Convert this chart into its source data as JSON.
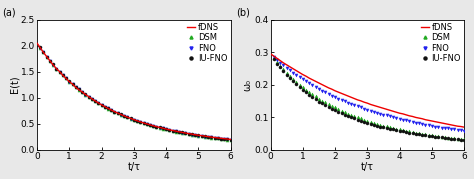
{
  "panel_a": {
    "label": "(a)",
    "ylabel": "E(t)",
    "xlabel": "t/τ",
    "xlim": [
      0,
      6
    ],
    "ylim": [
      0,
      2.5
    ],
    "yticks": [
      0.0,
      0.5,
      1.0,
      1.5,
      2.0,
      2.5
    ],
    "xticks": [
      0,
      1,
      2,
      3,
      4,
      5,
      6
    ],
    "fdns_x": [
      0.0,
      0.1,
      0.2,
      0.3,
      0.4,
      0.5,
      0.6,
      0.7,
      0.8,
      0.9,
      1.0,
      1.1,
      1.2,
      1.3,
      1.4,
      1.5,
      1.6,
      1.7,
      1.8,
      1.9,
      2.0,
      2.1,
      2.2,
      2.3,
      2.4,
      2.5,
      2.6,
      2.7,
      2.8,
      2.9,
      3.0,
      3.1,
      3.2,
      3.3,
      3.4,
      3.5,
      3.6,
      3.7,
      3.8,
      3.9,
      4.0,
      4.1,
      4.2,
      4.3,
      4.4,
      4.5,
      4.6,
      4.7,
      4.8,
      4.9,
      5.0,
      5.1,
      5.2,
      5.3,
      5.4,
      5.5,
      5.6,
      5.7,
      5.8,
      5.9,
      6.0
    ],
    "fdns_y": [
      2.05,
      1.96,
      1.87,
      1.79,
      1.71,
      1.63,
      1.56,
      1.5,
      1.43,
      1.37,
      1.31,
      1.26,
      1.2,
      1.15,
      1.11,
      1.06,
      1.02,
      0.977,
      0.937,
      0.898,
      0.862,
      0.827,
      0.794,
      0.762,
      0.731,
      0.703,
      0.675,
      0.649,
      0.624,
      0.6,
      0.577,
      0.555,
      0.534,
      0.514,
      0.495,
      0.477,
      0.459,
      0.442,
      0.426,
      0.411,
      0.396,
      0.382,
      0.368,
      0.355,
      0.343,
      0.331,
      0.319,
      0.308,
      0.298,
      0.287,
      0.277,
      0.268,
      0.259,
      0.25,
      0.241,
      0.233,
      0.225,
      0.218,
      0.21,
      0.203,
      0.196
    ],
    "dsm_x": [
      0.1,
      0.2,
      0.3,
      0.4,
      0.5,
      0.6,
      0.7,
      0.8,
      0.9,
      1.0,
      1.1,
      1.2,
      1.3,
      1.4,
      1.5,
      1.6,
      1.7,
      1.8,
      1.9,
      2.0,
      2.1,
      2.2,
      2.3,
      2.4,
      2.5,
      2.6,
      2.7,
      2.8,
      2.9,
      3.0,
      3.1,
      3.2,
      3.3,
      3.4,
      3.5,
      3.6,
      3.7,
      3.8,
      3.9,
      4.0,
      4.1,
      4.2,
      4.3,
      4.4,
      4.5,
      4.6,
      4.7,
      4.8,
      4.9,
      5.0,
      5.1,
      5.2,
      5.3,
      5.4,
      5.5,
      5.6,
      5.7,
      5.8,
      5.9,
      6.0
    ],
    "dsm_y": [
      1.96,
      1.87,
      1.79,
      1.71,
      1.63,
      1.56,
      1.49,
      1.43,
      1.37,
      1.31,
      1.26,
      1.2,
      1.15,
      1.1,
      1.06,
      1.01,
      0.971,
      0.931,
      0.893,
      0.857,
      0.822,
      0.789,
      0.757,
      0.727,
      0.698,
      0.67,
      0.644,
      0.619,
      0.594,
      0.571,
      0.549,
      0.528,
      0.508,
      0.489,
      0.47,
      0.452,
      0.435,
      0.419,
      0.403,
      0.388,
      0.373,
      0.36,
      0.346,
      0.333,
      0.321,
      0.31,
      0.298,
      0.288,
      0.277,
      0.267,
      0.258,
      0.249,
      0.24,
      0.231,
      0.223,
      0.215,
      0.208,
      0.2,
      0.193,
      0.187
    ],
    "fno_x": [
      0.1,
      0.2,
      0.3,
      0.4,
      0.5,
      0.6,
      0.7,
      0.8,
      0.9,
      1.0,
      1.1,
      1.2,
      1.3,
      1.4,
      1.5,
      1.6,
      1.7,
      1.8,
      1.9,
      2.0,
      2.1,
      2.2,
      2.3,
      2.4,
      2.5,
      2.6,
      2.7,
      2.8,
      2.9,
      3.0,
      3.1,
      3.2,
      3.3,
      3.4,
      3.5,
      3.6,
      3.7,
      3.8,
      3.9,
      4.0,
      4.1,
      4.2,
      4.3,
      4.4,
      4.5,
      4.6,
      4.7,
      4.8,
      4.9,
      5.0,
      5.1,
      5.2,
      5.3,
      5.4,
      5.5,
      5.6,
      5.7,
      5.8,
      5.9,
      6.0
    ],
    "fno_y": [
      1.96,
      1.87,
      1.79,
      1.71,
      1.63,
      1.56,
      1.49,
      1.43,
      1.37,
      1.31,
      1.26,
      1.21,
      1.16,
      1.11,
      1.06,
      1.02,
      0.975,
      0.935,
      0.896,
      0.86,
      0.825,
      0.792,
      0.76,
      0.73,
      0.701,
      0.673,
      0.647,
      0.622,
      0.598,
      0.575,
      0.553,
      0.532,
      0.512,
      0.493,
      0.474,
      0.456,
      0.439,
      0.423,
      0.407,
      0.392,
      0.377,
      0.363,
      0.35,
      0.337,
      0.325,
      0.313,
      0.301,
      0.29,
      0.28,
      0.27,
      0.26,
      0.251,
      0.242,
      0.233,
      0.225,
      0.217,
      0.209,
      0.202,
      0.195,
      0.188
    ],
    "iufno_x": [
      0.1,
      0.2,
      0.3,
      0.4,
      0.5,
      0.6,
      0.7,
      0.8,
      0.9,
      1.0,
      1.1,
      1.2,
      1.3,
      1.4,
      1.5,
      1.6,
      1.7,
      1.8,
      1.9,
      2.0,
      2.1,
      2.2,
      2.3,
      2.4,
      2.5,
      2.6,
      2.7,
      2.8,
      2.9,
      3.0,
      3.1,
      3.2,
      3.3,
      3.4,
      3.5,
      3.6,
      3.7,
      3.8,
      3.9,
      4.0,
      4.1,
      4.2,
      4.3,
      4.4,
      4.5,
      4.6,
      4.7,
      4.8,
      4.9,
      5.0,
      5.1,
      5.2,
      5.3,
      5.4,
      5.5,
      5.6,
      5.7,
      5.8,
      5.9,
      6.0
    ],
    "iufno_y": [
      1.97,
      1.88,
      1.79,
      1.71,
      1.64,
      1.56,
      1.5,
      1.43,
      1.37,
      1.32,
      1.26,
      1.21,
      1.16,
      1.11,
      1.07,
      1.02,
      0.979,
      0.938,
      0.9,
      0.863,
      0.828,
      0.795,
      0.763,
      0.733,
      0.704,
      0.676,
      0.65,
      0.625,
      0.601,
      0.578,
      0.556,
      0.535,
      0.515,
      0.495,
      0.477,
      0.459,
      0.442,
      0.426,
      0.41,
      0.395,
      0.381,
      0.367,
      0.354,
      0.341,
      0.329,
      0.317,
      0.305,
      0.295,
      0.284,
      0.274,
      0.264,
      0.255,
      0.246,
      0.237,
      0.229,
      0.221,
      0.213,
      0.205,
      0.198,
      0.191
    ]
  },
  "panel_b": {
    "label": "(b)",
    "ylabel": "ω₀",
    "xlabel": "t/τ",
    "xlim": [
      0,
      6
    ],
    "ylim": [
      0.0,
      0.4
    ],
    "yticks": [
      0.0,
      0.1,
      0.2,
      0.3,
      0.4
    ],
    "xticks": [
      0,
      1,
      2,
      3,
      4,
      5,
      6
    ],
    "fdns_x": [
      0.0,
      0.1,
      0.2,
      0.3,
      0.4,
      0.5,
      0.6,
      0.7,
      0.8,
      0.9,
      1.0,
      1.1,
      1.2,
      1.3,
      1.4,
      1.5,
      1.6,
      1.7,
      1.8,
      1.9,
      2.0,
      2.1,
      2.2,
      2.3,
      2.4,
      2.5,
      2.6,
      2.7,
      2.8,
      2.9,
      3.0,
      3.1,
      3.2,
      3.3,
      3.4,
      3.5,
      3.6,
      3.7,
      3.8,
      3.9,
      4.0,
      4.1,
      4.2,
      4.3,
      4.4,
      4.5,
      4.6,
      4.7,
      4.8,
      4.9,
      5.0,
      5.1,
      5.2,
      5.3,
      5.4,
      5.5,
      5.6,
      5.7,
      5.8,
      5.9,
      6.0
    ],
    "fdns_y": [
      0.295,
      0.288,
      0.281,
      0.274,
      0.267,
      0.261,
      0.255,
      0.249,
      0.243,
      0.237,
      0.231,
      0.226,
      0.22,
      0.215,
      0.21,
      0.205,
      0.2,
      0.195,
      0.19,
      0.186,
      0.181,
      0.177,
      0.173,
      0.169,
      0.165,
      0.161,
      0.157,
      0.153,
      0.15,
      0.146,
      0.143,
      0.139,
      0.136,
      0.133,
      0.13,
      0.127,
      0.124,
      0.121,
      0.118,
      0.115,
      0.112,
      0.11,
      0.107,
      0.104,
      0.102,
      0.099,
      0.097,
      0.095,
      0.092,
      0.09,
      0.088,
      0.086,
      0.084,
      0.082,
      0.08,
      0.078,
      0.076,
      0.074,
      0.072,
      0.071,
      0.069
    ],
    "dsm_x": [
      0.1,
      0.2,
      0.3,
      0.4,
      0.5,
      0.6,
      0.7,
      0.8,
      0.9,
      1.0,
      1.1,
      1.2,
      1.3,
      1.4,
      1.5,
      1.6,
      1.7,
      1.8,
      1.9,
      2.0,
      2.1,
      2.2,
      2.3,
      2.4,
      2.5,
      2.6,
      2.7,
      2.8,
      2.9,
      3.0,
      3.1,
      3.2,
      3.3,
      3.4,
      3.5,
      3.6,
      3.7,
      3.8,
      3.9,
      4.0,
      4.1,
      4.2,
      4.3,
      4.4,
      4.5,
      4.6,
      4.7,
      4.8,
      4.9,
      5.0,
      5.1,
      5.2,
      5.3,
      5.4,
      5.5,
      5.6,
      5.7,
      5.8,
      5.9,
      6.0
    ],
    "dsm_y": [
      0.282,
      0.27,
      0.258,
      0.247,
      0.237,
      0.227,
      0.218,
      0.209,
      0.2,
      0.192,
      0.185,
      0.177,
      0.17,
      0.164,
      0.157,
      0.151,
      0.146,
      0.14,
      0.135,
      0.13,
      0.125,
      0.12,
      0.116,
      0.111,
      0.107,
      0.103,
      0.1,
      0.096,
      0.092,
      0.089,
      0.086,
      0.083,
      0.08,
      0.077,
      0.074,
      0.072,
      0.069,
      0.067,
      0.064,
      0.062,
      0.06,
      0.058,
      0.056,
      0.054,
      0.052,
      0.051,
      0.049,
      0.047,
      0.046,
      0.044,
      0.043,
      0.041,
      0.04,
      0.039,
      0.037,
      0.036,
      0.035,
      0.034,
      0.033,
      0.032
    ],
    "fno_x": [
      0.1,
      0.2,
      0.3,
      0.4,
      0.5,
      0.6,
      0.7,
      0.8,
      0.9,
      1.0,
      1.1,
      1.2,
      1.3,
      1.4,
      1.5,
      1.6,
      1.7,
      1.8,
      1.9,
      2.0,
      2.1,
      2.2,
      2.3,
      2.4,
      2.5,
      2.6,
      2.7,
      2.8,
      2.9,
      3.0,
      3.1,
      3.2,
      3.3,
      3.4,
      3.5,
      3.6,
      3.7,
      3.8,
      3.9,
      4.0,
      4.1,
      4.2,
      4.3,
      4.4,
      4.5,
      4.6,
      4.7,
      4.8,
      4.9,
      5.0,
      5.1,
      5.2,
      5.3,
      5.4,
      5.5,
      5.6,
      5.7,
      5.8,
      5.9,
      6.0
    ],
    "fno_y": [
      0.285,
      0.276,
      0.268,
      0.26,
      0.252,
      0.244,
      0.237,
      0.23,
      0.223,
      0.216,
      0.21,
      0.204,
      0.198,
      0.192,
      0.187,
      0.181,
      0.176,
      0.171,
      0.166,
      0.162,
      0.157,
      0.153,
      0.149,
      0.145,
      0.141,
      0.137,
      0.133,
      0.13,
      0.126,
      0.123,
      0.12,
      0.116,
      0.113,
      0.11,
      0.108,
      0.105,
      0.102,
      0.099,
      0.097,
      0.094,
      0.092,
      0.09,
      0.087,
      0.085,
      0.083,
      0.081,
      0.079,
      0.077,
      0.075,
      0.073,
      0.071,
      0.07,
      0.068,
      0.066,
      0.065,
      0.063,
      0.062,
      0.06,
      0.059,
      0.057
    ],
    "iufno_x": [
      0.1,
      0.2,
      0.3,
      0.4,
      0.5,
      0.6,
      0.7,
      0.8,
      0.9,
      1.0,
      1.1,
      1.2,
      1.3,
      1.4,
      1.5,
      1.6,
      1.7,
      1.8,
      1.9,
      2.0,
      2.1,
      2.2,
      2.3,
      2.4,
      2.5,
      2.6,
      2.7,
      2.8,
      2.9,
      3.0,
      3.1,
      3.2,
      3.3,
      3.4,
      3.5,
      3.6,
      3.7,
      3.8,
      3.9,
      4.0,
      4.1,
      4.2,
      4.3,
      4.4,
      4.5,
      4.6,
      4.7,
      4.8,
      4.9,
      5.0,
      5.1,
      5.2,
      5.3,
      5.4,
      5.5,
      5.6,
      5.7,
      5.8,
      5.9,
      6.0
    ],
    "iufno_y": [
      0.278,
      0.265,
      0.253,
      0.241,
      0.23,
      0.22,
      0.21,
      0.201,
      0.192,
      0.184,
      0.176,
      0.168,
      0.161,
      0.155,
      0.148,
      0.142,
      0.136,
      0.131,
      0.126,
      0.121,
      0.116,
      0.112,
      0.107,
      0.103,
      0.099,
      0.096,
      0.092,
      0.089,
      0.085,
      0.082,
      0.079,
      0.076,
      0.074,
      0.071,
      0.069,
      0.066,
      0.064,
      0.062,
      0.06,
      0.058,
      0.056,
      0.054,
      0.052,
      0.051,
      0.049,
      0.047,
      0.046,
      0.044,
      0.043,
      0.042,
      0.04,
      0.039,
      0.038,
      0.037,
      0.036,
      0.034,
      0.033,
      0.032,
      0.031,
      0.03
    ]
  },
  "colors": {
    "fdns": "#EE0000",
    "dsm": "#22AA22",
    "fno": "#2222EE",
    "iufno": "#111111"
  },
  "bg_color": "#e8e8e8",
  "fontsize": 7,
  "marker_size": 2.2,
  "linewidth": 1.0
}
